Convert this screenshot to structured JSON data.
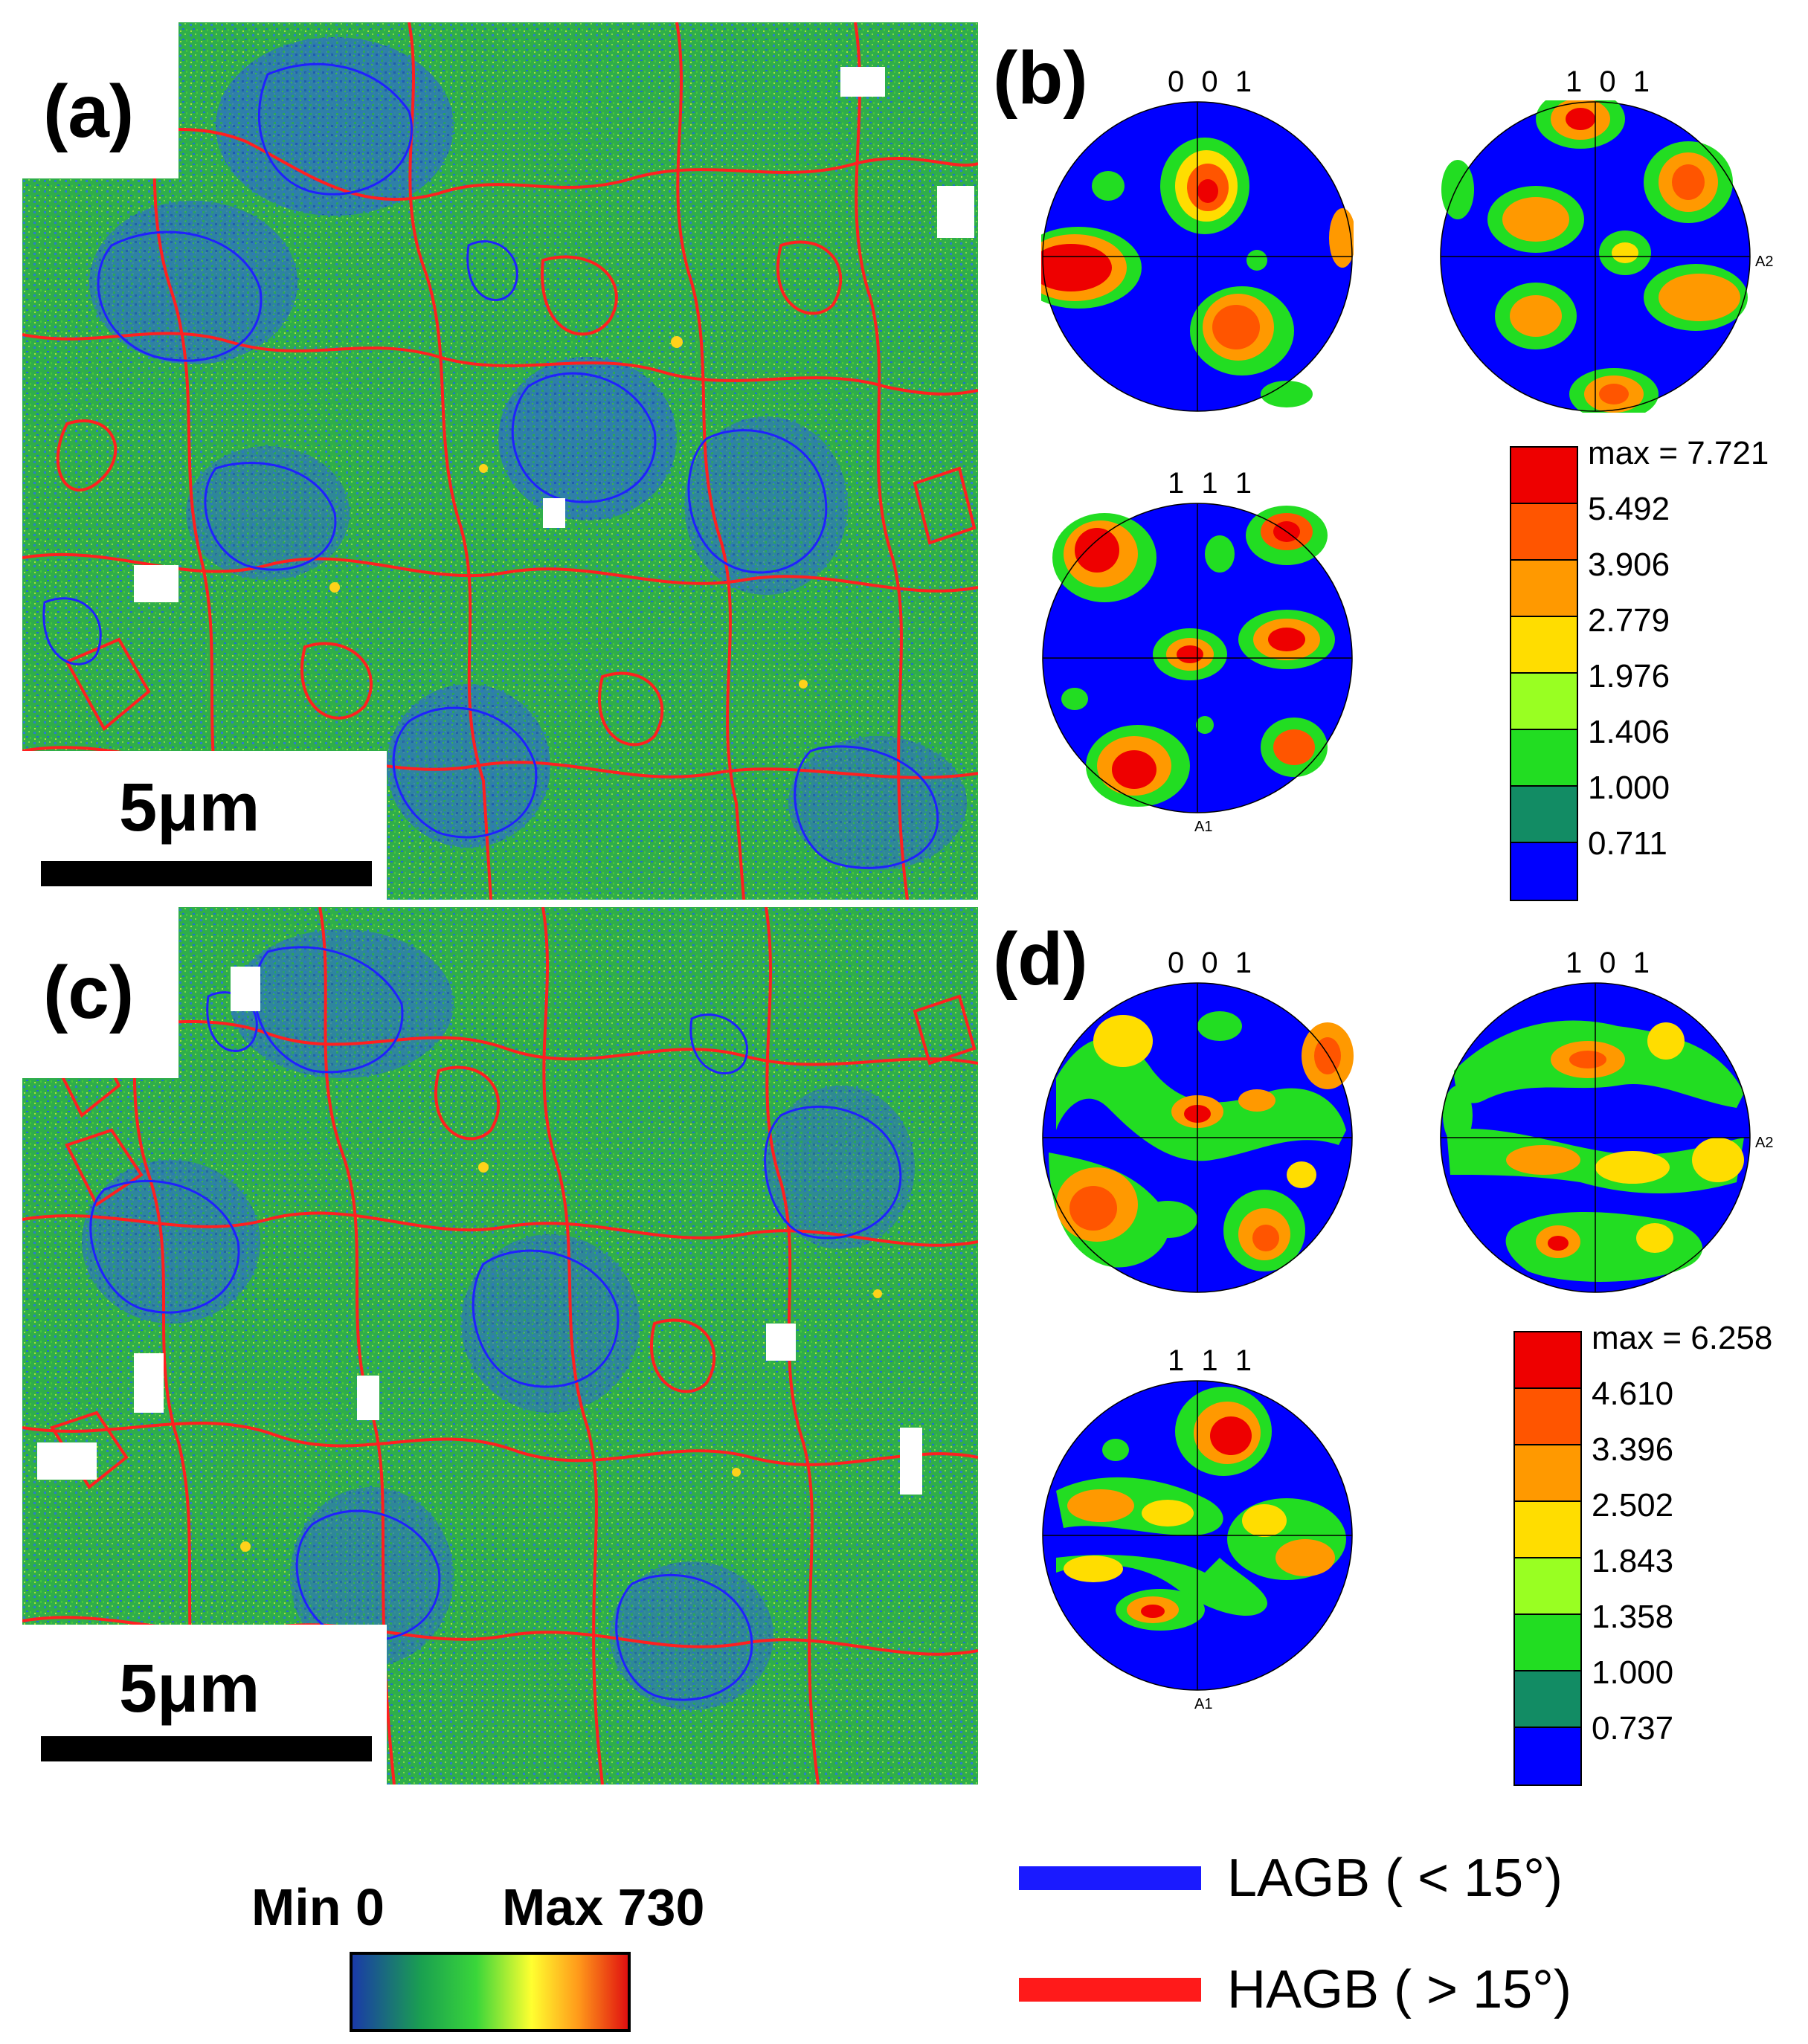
{
  "figure": {
    "panels": {
      "a": {
        "label": "(a)",
        "scalebar": "5μm"
      },
      "b": {
        "label": "(b)"
      },
      "c": {
        "label": "(c)",
        "scalebar": "5μm"
      },
      "d": {
        "label": "(d)"
      }
    },
    "pole_figures": {
      "b": {
        "poles": [
          "0 0 1",
          "1 0 1",
          "1 1 1"
        ],
        "axis_a1": "A1",
        "axis_a2": "A2",
        "colorbar": [
          "max = 7.721",
          "5.492",
          "3.906",
          "2.779",
          "1.976",
          "1.406",
          "1.000",
          "0.711"
        ]
      },
      "d": {
        "poles": [
          "0 0 1",
          "1 0 1",
          "1 1 1"
        ],
        "axis_a1": "A1",
        "axis_a2": "A2",
        "colorbar": [
          "max = 6.258",
          "4.610",
          "3.396",
          "2.502",
          "1.843",
          "1.358",
          "1.000",
          "0.737"
        ]
      }
    },
    "kam_scale": {
      "min_label": "Min 0",
      "max_label": "Max 730"
    },
    "boundary_legend": [
      {
        "label": "LAGB ( < 15°)",
        "color": "#1a1aff"
      },
      {
        "label": "HAGB ( > 15°)",
        "color": "#ff1a1a"
      }
    ],
    "colors": {
      "pf_levels": [
        "#0000ff",
        "#128c64",
        "#22dd22",
        "#99ff22",
        "#ffdd00",
        "#ff9900",
        "#ff5500",
        "#ee0000"
      ],
      "kam_gradient": [
        "#1a3aa8",
        "#1aa050",
        "#3ad63a",
        "#ffff30",
        "#ff9a1a",
        "#e01010"
      ]
    }
  }
}
